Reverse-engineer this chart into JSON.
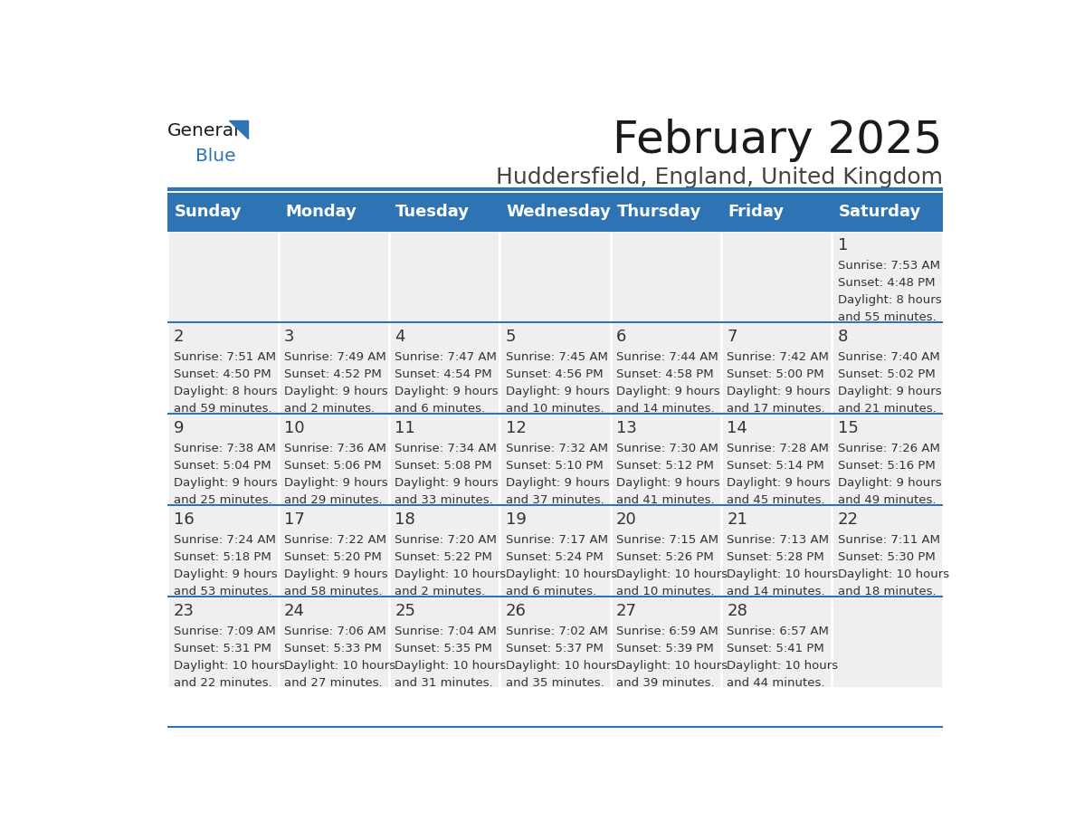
{
  "title": "February 2025",
  "subtitle": "Huddersfield, England, United Kingdom",
  "header_color": "#2E74B5",
  "header_text_color": "#FFFFFF",
  "cell_bg_color": "#EFEFEF",
  "cell_text_color": "#333333",
  "border_color": "#2E74B5",
  "days_of_week": [
    "Sunday",
    "Monday",
    "Tuesday",
    "Wednesday",
    "Thursday",
    "Friday",
    "Saturday"
  ],
  "calendar_data": [
    [
      {
        "day": null,
        "sunrise": null,
        "sunset": null,
        "daylight": null
      },
      {
        "day": null,
        "sunrise": null,
        "sunset": null,
        "daylight": null
      },
      {
        "day": null,
        "sunrise": null,
        "sunset": null,
        "daylight": null
      },
      {
        "day": null,
        "sunrise": null,
        "sunset": null,
        "daylight": null
      },
      {
        "day": null,
        "sunrise": null,
        "sunset": null,
        "daylight": null
      },
      {
        "day": null,
        "sunrise": null,
        "sunset": null,
        "daylight": null
      },
      {
        "day": 1,
        "sunrise": "7:53 AM",
        "sunset": "4:48 PM",
        "daylight1": "8 hours",
        "daylight2": "and 55 minutes."
      }
    ],
    [
      {
        "day": 2,
        "sunrise": "7:51 AM",
        "sunset": "4:50 PM",
        "daylight1": "8 hours",
        "daylight2": "and 59 minutes."
      },
      {
        "day": 3,
        "sunrise": "7:49 AM",
        "sunset": "4:52 PM",
        "daylight1": "9 hours",
        "daylight2": "and 2 minutes."
      },
      {
        "day": 4,
        "sunrise": "7:47 AM",
        "sunset": "4:54 PM",
        "daylight1": "9 hours",
        "daylight2": "and 6 minutes."
      },
      {
        "day": 5,
        "sunrise": "7:45 AM",
        "sunset": "4:56 PM",
        "daylight1": "9 hours",
        "daylight2": "and 10 minutes."
      },
      {
        "day": 6,
        "sunrise": "7:44 AM",
        "sunset": "4:58 PM",
        "daylight1": "9 hours",
        "daylight2": "and 14 minutes."
      },
      {
        "day": 7,
        "sunrise": "7:42 AM",
        "sunset": "5:00 PM",
        "daylight1": "9 hours",
        "daylight2": "and 17 minutes."
      },
      {
        "day": 8,
        "sunrise": "7:40 AM",
        "sunset": "5:02 PM",
        "daylight1": "9 hours",
        "daylight2": "and 21 minutes."
      }
    ],
    [
      {
        "day": 9,
        "sunrise": "7:38 AM",
        "sunset": "5:04 PM",
        "daylight1": "9 hours",
        "daylight2": "and 25 minutes."
      },
      {
        "day": 10,
        "sunrise": "7:36 AM",
        "sunset": "5:06 PM",
        "daylight1": "9 hours",
        "daylight2": "and 29 minutes."
      },
      {
        "day": 11,
        "sunrise": "7:34 AM",
        "sunset": "5:08 PM",
        "daylight1": "9 hours",
        "daylight2": "and 33 minutes."
      },
      {
        "day": 12,
        "sunrise": "7:32 AM",
        "sunset": "5:10 PM",
        "daylight1": "9 hours",
        "daylight2": "and 37 minutes."
      },
      {
        "day": 13,
        "sunrise": "7:30 AM",
        "sunset": "5:12 PM",
        "daylight1": "9 hours",
        "daylight2": "and 41 minutes."
      },
      {
        "day": 14,
        "sunrise": "7:28 AM",
        "sunset": "5:14 PM",
        "daylight1": "9 hours",
        "daylight2": "and 45 minutes."
      },
      {
        "day": 15,
        "sunrise": "7:26 AM",
        "sunset": "5:16 PM",
        "daylight1": "9 hours",
        "daylight2": "and 49 minutes."
      }
    ],
    [
      {
        "day": 16,
        "sunrise": "7:24 AM",
        "sunset": "5:18 PM",
        "daylight1": "9 hours",
        "daylight2": "and 53 minutes."
      },
      {
        "day": 17,
        "sunrise": "7:22 AM",
        "sunset": "5:20 PM",
        "daylight1": "9 hours",
        "daylight2": "and 58 minutes."
      },
      {
        "day": 18,
        "sunrise": "7:20 AM",
        "sunset": "5:22 PM",
        "daylight1": "10 hours",
        "daylight2": "and 2 minutes."
      },
      {
        "day": 19,
        "sunrise": "7:17 AM",
        "sunset": "5:24 PM",
        "daylight1": "10 hours",
        "daylight2": "and 6 minutes."
      },
      {
        "day": 20,
        "sunrise": "7:15 AM",
        "sunset": "5:26 PM",
        "daylight1": "10 hours",
        "daylight2": "and 10 minutes."
      },
      {
        "day": 21,
        "sunrise": "7:13 AM",
        "sunset": "5:28 PM",
        "daylight1": "10 hours",
        "daylight2": "and 14 minutes."
      },
      {
        "day": 22,
        "sunrise": "7:11 AM",
        "sunset": "5:30 PM",
        "daylight1": "10 hours",
        "daylight2": "and 18 minutes."
      }
    ],
    [
      {
        "day": 23,
        "sunrise": "7:09 AM",
        "sunset": "5:31 PM",
        "daylight1": "10 hours",
        "daylight2": "and 22 minutes."
      },
      {
        "day": 24,
        "sunrise": "7:06 AM",
        "sunset": "5:33 PM",
        "daylight1": "10 hours",
        "daylight2": "and 27 minutes."
      },
      {
        "day": 25,
        "sunrise": "7:04 AM",
        "sunset": "5:35 PM",
        "daylight1": "10 hours",
        "daylight2": "and 31 minutes."
      },
      {
        "day": 26,
        "sunrise": "7:02 AM",
        "sunset": "5:37 PM",
        "daylight1": "10 hours",
        "daylight2": "and 35 minutes."
      },
      {
        "day": 27,
        "sunrise": "6:59 AM",
        "sunset": "5:39 PM",
        "daylight1": "10 hours",
        "daylight2": "and 39 minutes."
      },
      {
        "day": 28,
        "sunrise": "6:57 AM",
        "sunset": "5:41 PM",
        "daylight1": "10 hours",
        "daylight2": "and 44 minutes."
      },
      {
        "day": null,
        "sunrise": null,
        "sunset": null,
        "daylight1": null,
        "daylight2": null
      }
    ]
  ],
  "title_fontsize": 36,
  "subtitle_fontsize": 18,
  "header_fontsize": 13,
  "day_num_fontsize": 13,
  "cell_text_fontsize": 9.5
}
